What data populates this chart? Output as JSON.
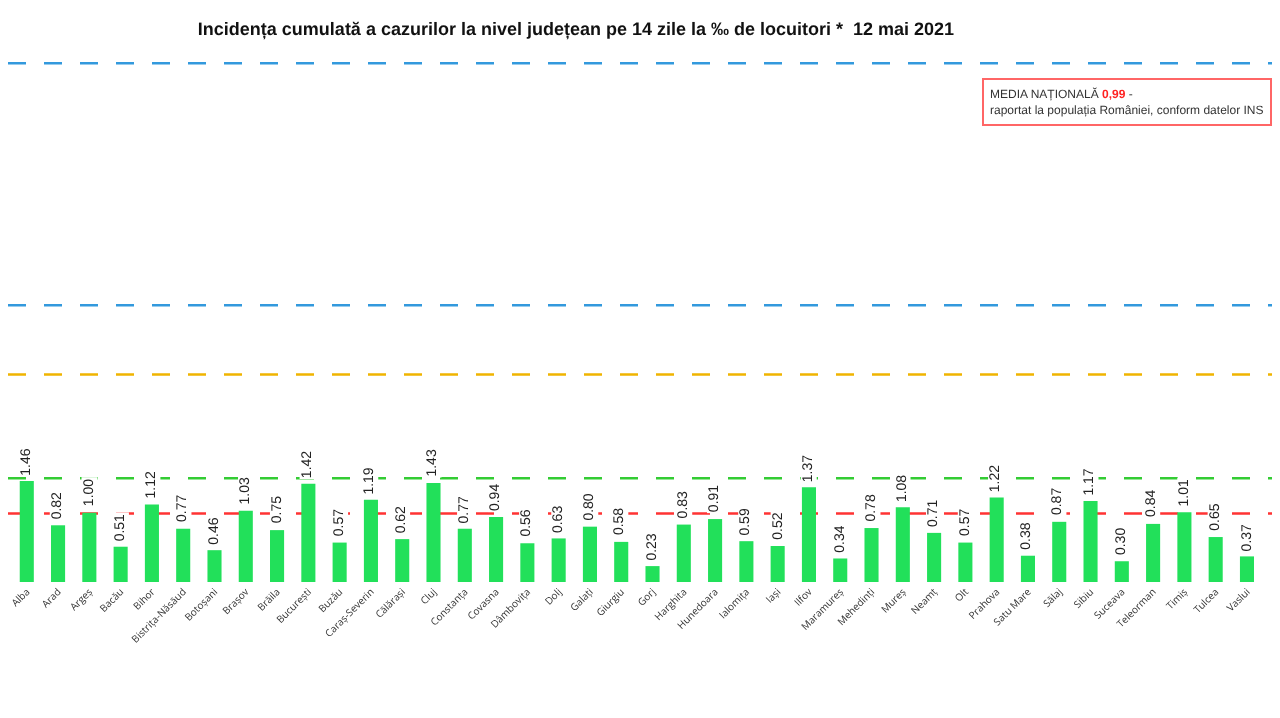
{
  "chart_data": {
    "type": "bar",
    "title": "Incidența cumulată a cazurilor la nivel județean pe 14 zile la ‰ de locuitori *  12 mai 2021",
    "categories": [
      "Alba",
      "Arad",
      "Argeș",
      "Bacău",
      "Bihor",
      "Bistrița-Năsăud",
      "Botoșani",
      "Brașov",
      "Brăila",
      "București",
      "Buzău",
      "Caraș-Severin",
      "Călărași",
      "Cluj",
      "Constanța",
      "Covasna",
      "Dâmbovița",
      "Dolj",
      "Galați",
      "Giurgiu",
      "Gorj",
      "Harghita",
      "Hunedoara",
      "Ialomița",
      "Iași",
      "Ilfov",
      "Maramureș",
      "Mehedinți",
      "Mureș",
      "Neamț",
      "Olt",
      "Prahova",
      "Satu Mare",
      "Sălaj",
      "Sibiu",
      "Suceava",
      "Teleorman",
      "Timiș",
      "Tulcea",
      "Vaslui"
    ],
    "values": [
      1.46,
      0.82,
      1.0,
      0.51,
      1.12,
      0.77,
      0.46,
      1.03,
      0.75,
      1.42,
      0.57,
      1.19,
      0.62,
      1.43,
      0.77,
      0.94,
      0.56,
      0.63,
      0.8,
      0.58,
      0.23,
      0.83,
      0.91,
      0.59,
      0.52,
      1.37,
      0.34,
      0.78,
      1.08,
      0.71,
      0.57,
      1.22,
      0.38,
      0.87,
      1.17,
      0.3,
      0.84,
      1.01,
      0.65,
      0.37
    ],
    "value_labels": [
      "1.46",
      "0.82",
      "1.00",
      "0.51",
      "1.12",
      "0.77",
      "0.46",
      "1.03",
      "0.75",
      "1.42",
      "0.57",
      "1.19",
      "0.62",
      "1.43",
      "0.77",
      "0.94",
      "0.56",
      "0.63",
      "0.80",
      "0.58",
      "0.23",
      "0.83",
      "0.91",
      "0.59",
      "0.52",
      "1.37",
      "0.34",
      "0.78",
      "1.08",
      "0.71",
      "0.57",
      "1.22",
      "0.38",
      "0.87",
      "1.17",
      "0.30",
      "0.84",
      "1.01",
      "0.65",
      "0.37"
    ],
    "color": "#22e05a",
    "tick_labels": "x",
    "grid": false,
    "ref_lines": [
      {
        "axis": "y",
        "value": 0.99,
        "color": "#ff3333",
        "line_style": "dashed"
      },
      {
        "axis": "y",
        "value": 1.5,
        "color": "#33cc33",
        "line_style": "dashed"
      },
      {
        "axis": "y",
        "value": 3,
        "color": "#f0b400",
        "line_style": "dashed"
      },
      {
        "axis": "y",
        "value": 4,
        "color": "#3399dd",
        "line_style": "dashed"
      },
      {
        "axis": "y",
        "value": 7.5,
        "color": "#3399dd",
        "line_style": "dashed"
      }
    ],
    "annotations": [
      "MEDIA NAȚIONALĂ 0,99 - raportat la populația României, conform datelor INS"
    ]
  }
}
